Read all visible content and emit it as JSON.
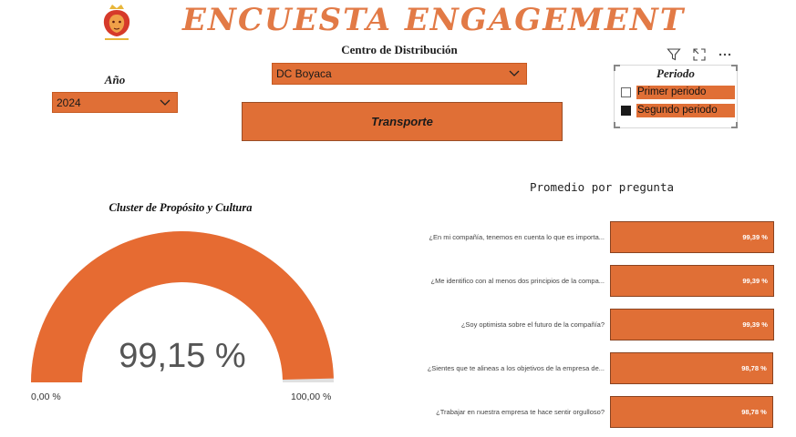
{
  "header": {
    "title": "ENCUESTA ENGAGEMENT"
  },
  "filters": {
    "anio": {
      "label": "Año",
      "value": "2024"
    },
    "centro": {
      "label": "Centro de Distribución",
      "value": "DC Boyaca"
    },
    "area_button": "Transporte",
    "periodo": {
      "title": "Periodo",
      "items": [
        {
          "label": "Primer periodo",
          "checked": false
        },
        {
          "label": "Segundo periodo",
          "checked": true
        }
      ]
    }
  },
  "gauge": {
    "title": "Cluster de Propósito y Cultura",
    "value_label": "99,15 %",
    "value": 99.15,
    "min_label": "0,00 %",
    "max_label": "100,00 %"
  },
  "chart_data": {
    "type": "bar",
    "title": "Promedio por pregunta",
    "categories": [
      "¿En mi compañía, tenemos en cuenta lo que es importa...",
      "¿Me identifico con al menos dos principios de la compa...",
      "¿Soy optimista sobre el futuro de la compañía?",
      "¿Sientes que te alineas a los objetivos de la empresa de...",
      "¿Trabajar en nuestra empresa te hace sentir orgulloso?"
    ],
    "values": [
      99.39,
      99.39,
      99.39,
      98.78,
      98.78
    ],
    "value_labels": [
      "99,39 %",
      "99,39 %",
      "99,39 %",
      "98,78 %",
      "98,78 %"
    ],
    "orientation": "horizontal",
    "color": "#e06f36"
  },
  "colors": {
    "accent": "#e06f36",
    "title": "#e27a46"
  },
  "icons": [
    "lion-logo-icon",
    "filter-icon",
    "focus-mode-icon",
    "more-options-icon",
    "chevron-down-icon"
  ]
}
